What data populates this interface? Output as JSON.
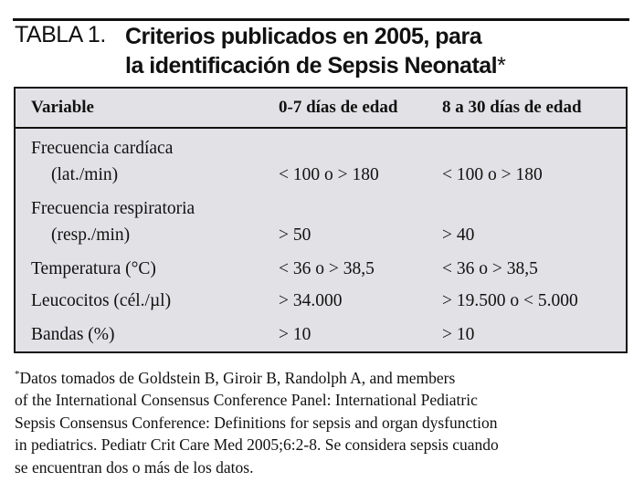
{
  "title": {
    "label": "TABLA 1.",
    "line1": "Criterios publicados en 2005, para",
    "line2": "la identificación de Sepsis Neonatal",
    "marker": "*"
  },
  "table": {
    "headers": [
      "Variable",
      "0-7 días de edad",
      "8 a 30 días de edad"
    ],
    "rows": [
      {
        "variable": "Frecuencia cardíaca",
        "unit": "(lat./min)",
        "a": "< 100 o > 180",
        "b": "< 100 o > 180"
      },
      {
        "variable": "Frecuencia respiratoria",
        "unit": "(resp./min)",
        "a": "> 50",
        "b": "> 40"
      },
      {
        "variable": "Temperatura (°C)",
        "a": "< 36 o > 38,5",
        "b": "< 36 o > 38,5"
      },
      {
        "variable": "Leucocitos (cél./µl)",
        "a": "> 34.000",
        "b": "> 19.500 o < 5.000"
      },
      {
        "variable": "Bandas (%)",
        "a": "> 10",
        "b": "> 10"
      }
    ]
  },
  "footnote": {
    "marker": "*",
    "lines": [
      "Datos tomados de Goldstein B, Giroir B, Randolph A, and members",
      "of the International Consensus Conference Panel: International Pediatric",
      "Sepsis Consensus Conference: Definitions for sepsis and organ dysfunction",
      "in pediatrics. Pediatr Crit Care Med 2005;6:2-8. Se considera sepsis cuando",
      "se encuentran dos o más de los datos."
    ]
  }
}
